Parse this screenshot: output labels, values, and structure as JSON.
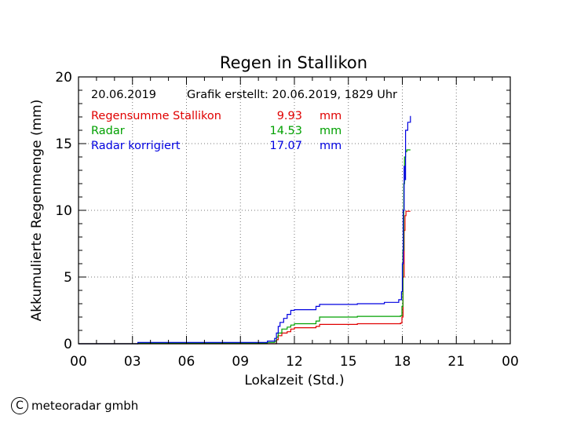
{
  "chart_data": {
    "type": "line",
    "title": "Regen in Stallikon",
    "xlabel": "Lokalzeit (Std.)",
    "ylabel": "Akkumulierte Regenmenge (mm)",
    "xlim": [
      0,
      24
    ],
    "ylim": [
      0,
      20
    ],
    "xticks": [
      "00",
      "03",
      "06",
      "09",
      "12",
      "15",
      "18",
      "21",
      "00"
    ],
    "yticks": [
      "0",
      "5",
      "10",
      "15",
      "20"
    ],
    "grid": true,
    "date": "20.06.2019",
    "created": "Grafik erstellt: 20.06.2019, 1829 Uhr",
    "series": [
      {
        "name": "Regensumme Stallikon",
        "total": "9.93",
        "unit": "mm",
        "color": "#e00000",
        "x": [
          0,
          10.9,
          11.0,
          11.1,
          11.3,
          11.6,
          11.8,
          12.0,
          12.5,
          13.0,
          13.2,
          13.4,
          14.5,
          15.5,
          17.0,
          17.9,
          17.98,
          18.04,
          18.1,
          18.15,
          18.2,
          18.3,
          18.45
        ],
        "y": [
          0,
          0,
          0.3,
          0.6,
          0.8,
          0.9,
          1.1,
          1.2,
          1.2,
          1.2,
          1.3,
          1.45,
          1.45,
          1.5,
          1.5,
          1.55,
          2.0,
          5.0,
          8.5,
          9.6,
          9.93,
          9.93,
          9.93
        ]
      },
      {
        "name": "Radar",
        "total": "14.53",
        "unit": "mm",
        "color": "#00a000",
        "x": [
          0,
          3.3,
          8.0,
          10.0,
          10.5,
          10.9,
          11.0,
          11.1,
          11.3,
          11.6,
          11.8,
          12.0,
          12.5,
          13.0,
          13.2,
          13.4,
          14.5,
          15.5,
          17.0,
          17.9,
          17.98,
          18.03,
          18.08,
          18.12,
          18.18,
          18.25,
          18.45
        ],
        "y": [
          0,
          0.05,
          0.05,
          0.05,
          0.1,
          0.2,
          0.5,
          0.8,
          1.1,
          1.25,
          1.4,
          1.5,
          1.5,
          1.5,
          1.7,
          2.0,
          2.0,
          2.05,
          2.05,
          2.1,
          2.8,
          7.0,
          12.0,
          14.0,
          14.4,
          14.53,
          14.53
        ]
      },
      {
        "name": "Radar korrigiert",
        "total": "17.07",
        "unit": "mm",
        "color": "#0000e0",
        "x": [
          0,
          3.3,
          8.0,
          10.0,
          10.5,
          10.9,
          11.0,
          11.1,
          11.2,
          11.4,
          11.6,
          11.8,
          12.0,
          12.5,
          13.0,
          13.2,
          13.4,
          14.5,
          15.5,
          17.0,
          17.8,
          17.95,
          18.0,
          18.05,
          18.1,
          18.12,
          18.18,
          18.3,
          18.45
        ],
        "y": [
          0,
          0.1,
          0.1,
          0.1,
          0.2,
          0.4,
          0.8,
          1.3,
          1.6,
          1.9,
          2.2,
          2.5,
          2.55,
          2.55,
          2.55,
          2.8,
          2.95,
          2.95,
          3.0,
          3.1,
          3.3,
          3.9,
          6.0,
          10.0,
          13.3,
          12.3,
          16.0,
          16.6,
          17.07
        ]
      }
    ]
  },
  "copyright": {
    "symbol": "C",
    "text": "meteoradar gmbh"
  }
}
